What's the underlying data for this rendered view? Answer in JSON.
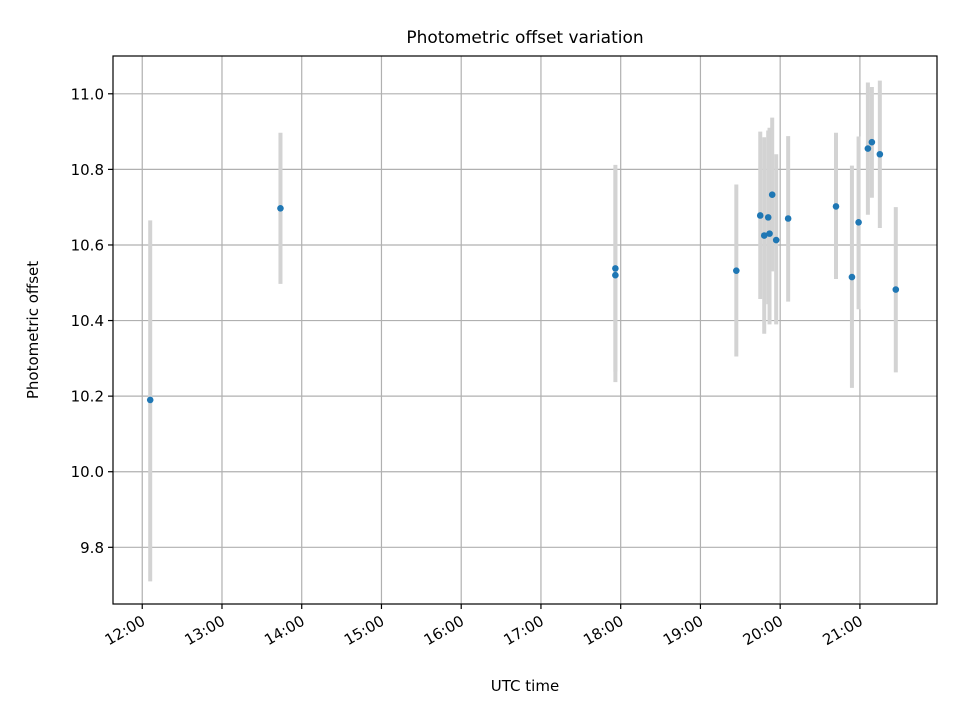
{
  "chart_data": {
    "type": "scatter",
    "title": "Photometric offset variation",
    "xlabel": "UTC time",
    "ylabel": "Photometric offset",
    "xlim": [
      "11:38",
      "21:58"
    ],
    "ylim": [
      9.65,
      11.1
    ],
    "xticks": [
      "12:00",
      "13:00",
      "14:00",
      "15:00",
      "16:00",
      "17:00",
      "18:00",
      "19:00",
      "20:00",
      "21:00"
    ],
    "yticks": [
      "9.8",
      "10.0",
      "10.2",
      "10.4",
      "10.6",
      "10.8",
      "11.0"
    ],
    "grid": true,
    "marker_color": "#1f77b4",
    "errorbar_color": "#d3d3d3",
    "points": [
      {
        "x": "12:06",
        "y": 10.19,
        "ylo": 9.71,
        "yhi": 10.665
      },
      {
        "x": "13:44",
        "y": 10.697,
        "ylo": 10.497,
        "yhi": 10.897
      },
      {
        "x": "17:56",
        "y": 10.538,
        "ylo": 10.265,
        "yhi": 10.812
      },
      {
        "x": "17:56",
        "y": 10.52,
        "ylo": 10.237,
        "yhi": 10.803
      },
      {
        "x": "19:27",
        "y": 10.532,
        "ylo": 10.305,
        "yhi": 10.76
      },
      {
        "x": "19:45",
        "y": 10.678,
        "ylo": 10.457,
        "yhi": 10.9
      },
      {
        "x": "19:48",
        "y": 10.625,
        "ylo": 10.365,
        "yhi": 10.885
      },
      {
        "x": "19:51",
        "y": 10.673,
        "ylo": 10.443,
        "yhi": 10.903
      },
      {
        "x": "19:52",
        "y": 10.63,
        "ylo": 10.39,
        "yhi": 10.91
      },
      {
        "x": "19:54",
        "y": 10.733,
        "ylo": 10.53,
        "yhi": 10.937
      },
      {
        "x": "19:57",
        "y": 10.613,
        "ylo": 10.39,
        "yhi": 10.84
      },
      {
        "x": "20:06",
        "y": 10.67,
        "ylo": 10.45,
        "yhi": 10.888
      },
      {
        "x": "20:42",
        "y": 10.702,
        "ylo": 10.51,
        "yhi": 10.897
      },
      {
        "x": "20:54",
        "y": 10.515,
        "ylo": 10.222,
        "yhi": 10.81
      },
      {
        "x": "20:59",
        "y": 10.66,
        "ylo": 10.43,
        "yhi": 10.887
      },
      {
        "x": "21:06",
        "y": 10.855,
        "ylo": 10.68,
        "yhi": 11.03
      },
      {
        "x": "21:09",
        "y": 10.872,
        "ylo": 10.725,
        "yhi": 11.018
      },
      {
        "x": "21:15",
        "y": 10.84,
        "ylo": 10.645,
        "yhi": 11.035
      },
      {
        "x": "21:27",
        "y": 10.482,
        "ylo": 10.263,
        "yhi": 10.7
      }
    ]
  }
}
